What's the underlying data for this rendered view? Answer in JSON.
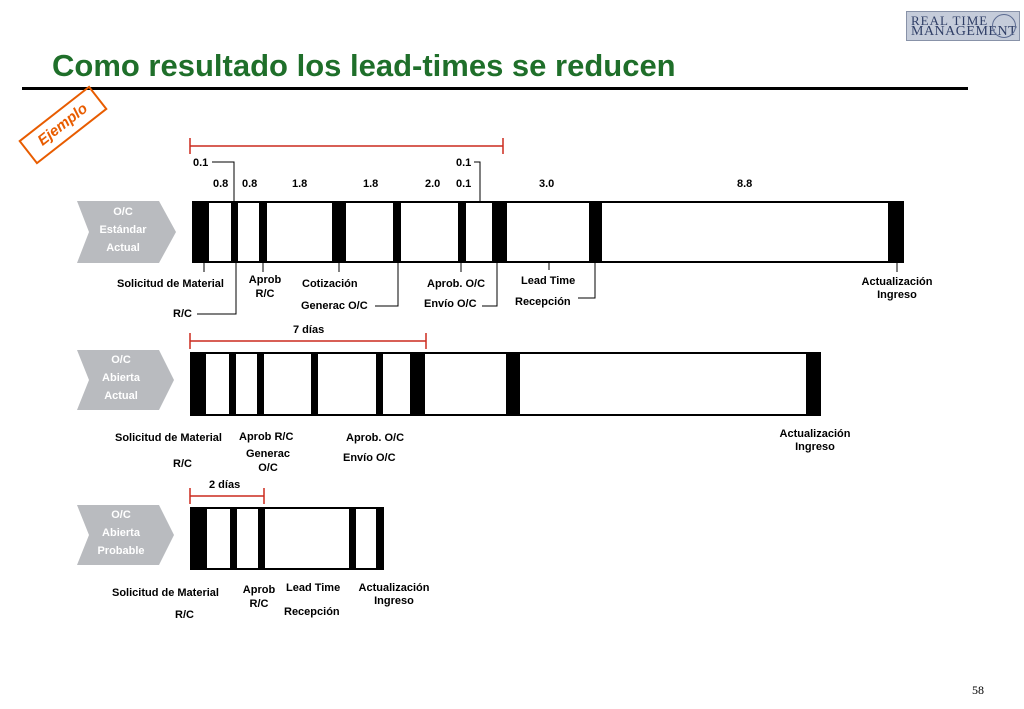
{
  "title": "Como resultado los lead-times se reducen",
  "logo": {
    "line1": "REAL TIME",
    "line2": "MANAGEMENT"
  },
  "badge": "Ejemplo",
  "page_number": "58",
  "row1": {
    "chevron": [
      "O/C",
      "Estándar",
      "Actual"
    ],
    "top_values": {
      "v1": "0.1",
      "v2": "0.1"
    },
    "segments": [
      "0.8",
      "0.8",
      "1.8",
      "1.8",
      "2.0",
      "0.1",
      "3.0",
      "8.8"
    ],
    "labels": {
      "solicitud": "Solicitud de Material",
      "rc": "R/C",
      "aprob_rc": [
        "Aprob",
        "R/C"
      ],
      "cotizacion": "Cotización",
      "generac": "Generac O/C",
      "aprob_oc": "Aprob. O/C",
      "envio": "Envío O/C",
      "lead_time": "Lead Time",
      "recepcion": "Recepción",
      "actualizacion": [
        "Actualización",
        "Ingreso"
      ]
    }
  },
  "row2": {
    "chevron": [
      "O/C",
      "Abierta",
      "Actual"
    ],
    "span_label": "7 días",
    "labels": {
      "solicitud": "Solicitud de Material",
      "rc": "R/C",
      "aprob_rc": "Aprob R/C",
      "generac": [
        "Generac",
        "O/C"
      ],
      "aprob_oc": "Aprob. O/C",
      "envio": "Envío O/C",
      "actualizacion": [
        "Actualización",
        "Ingreso"
      ]
    }
  },
  "row3": {
    "chevron": [
      "O/C",
      "Abierta",
      "Probable"
    ],
    "span_label": "2 días",
    "labels": {
      "solicitud": "Solicitud de Material",
      "rc": "R/C",
      "aprob_rc": [
        "Aprob",
        "R/C"
      ],
      "lead_time": "Lead Time",
      "recepcion": "Recepción",
      "actualizacion": [
        "Actualización",
        "Ingreso"
      ]
    }
  }
}
